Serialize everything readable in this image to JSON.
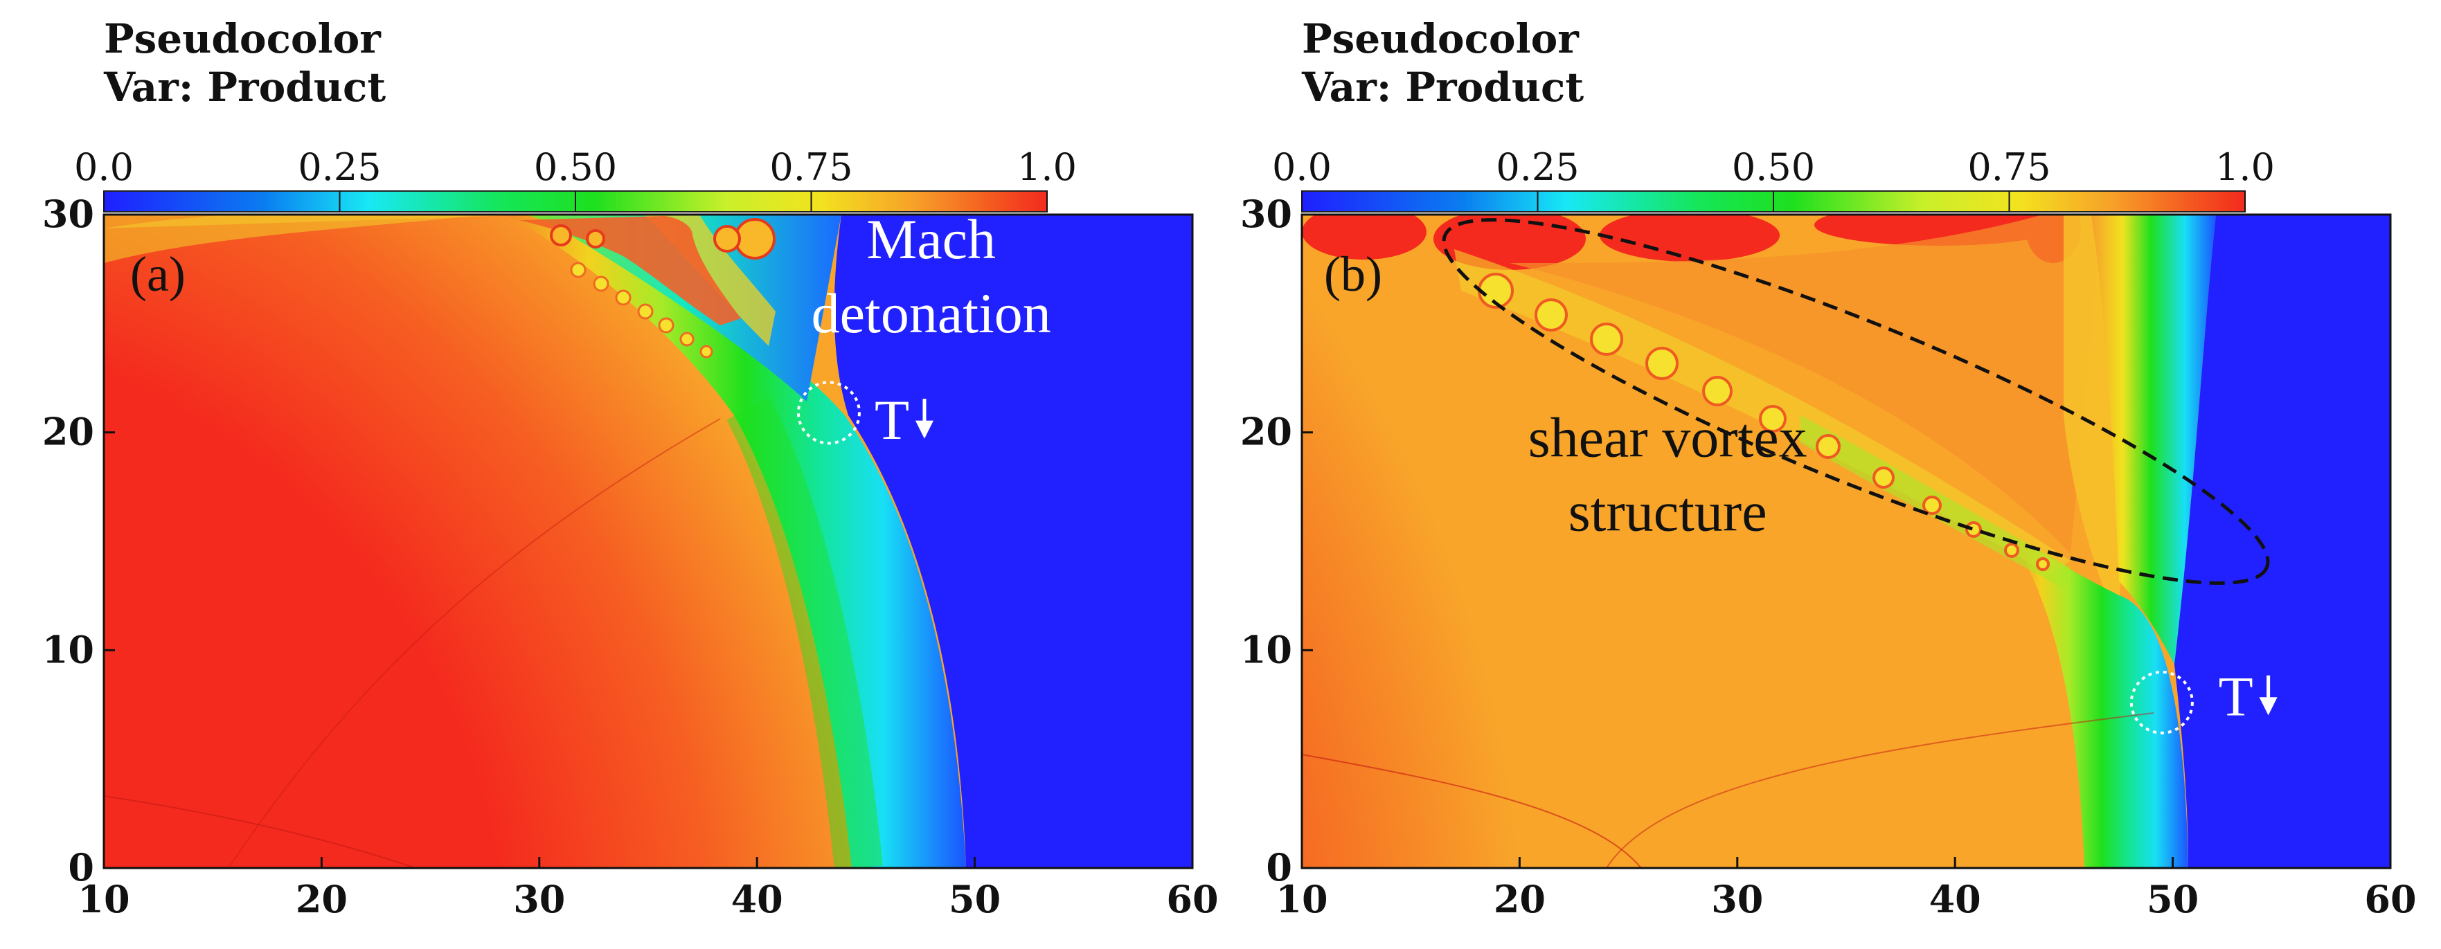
{
  "chart_data": [
    {
      "type": "heatmap",
      "panel_label": "(a)",
      "legend_title": "Pseudocolor",
      "legend_var": "Var: Product",
      "colorbar": {
        "min": 0.0,
        "max": 1.0,
        "ticks": [
          "0.0",
          "0.25",
          "0.50",
          "0.75",
          "1.0"
        ],
        "tick_values": [
          0,
          0.25,
          0.5,
          0.75,
          1.0
        ]
      },
      "xlim": [
        10,
        60
      ],
      "ylim": [
        0,
        30
      ],
      "xticks": [
        10,
        20,
        30,
        40,
        50,
        60
      ],
      "yticks": [
        0,
        10,
        20,
        30
      ],
      "annotations": [
        {
          "text": "Mach",
          "x": 48,
          "y": 28
        },
        {
          "text": "detonation",
          "x": 48,
          "y": 24.6
        },
        {
          "text": "T",
          "x": 45.4,
          "y": 19.7
        }
      ],
      "triple_point": {
        "x": 43.3,
        "y": 20.9
      },
      "detonation_front_x_at_y0": 49.5
    },
    {
      "type": "heatmap",
      "panel_label": "(b)",
      "legend_title": "Pseudocolor",
      "legend_var": "Var: Product",
      "colorbar": {
        "min": 0.0,
        "max": 1.0,
        "ticks": [
          "0.0",
          "0.25",
          "0.50",
          "0.75",
          "1.0"
        ],
        "tick_values": [
          0,
          0.25,
          0.5,
          0.75,
          1.0
        ]
      },
      "xlim": [
        10,
        60
      ],
      "ylim": [
        0,
        30
      ],
      "xticks": [
        10,
        20,
        30,
        40,
        50,
        60
      ],
      "yticks": [
        0,
        10,
        20,
        30
      ],
      "annotations": [
        {
          "text": "shear vortex",
          "x": 26.8,
          "y": 18.9
        },
        {
          "text": "structure",
          "x": 26.8,
          "y": 15.5
        },
        {
          "text": "T",
          "x": 52.1,
          "y": 7
        }
      ],
      "triple_point": {
        "x": 49.5,
        "y": 7.6
      },
      "detonation_front_x_at_y0": 50.5
    }
  ]
}
